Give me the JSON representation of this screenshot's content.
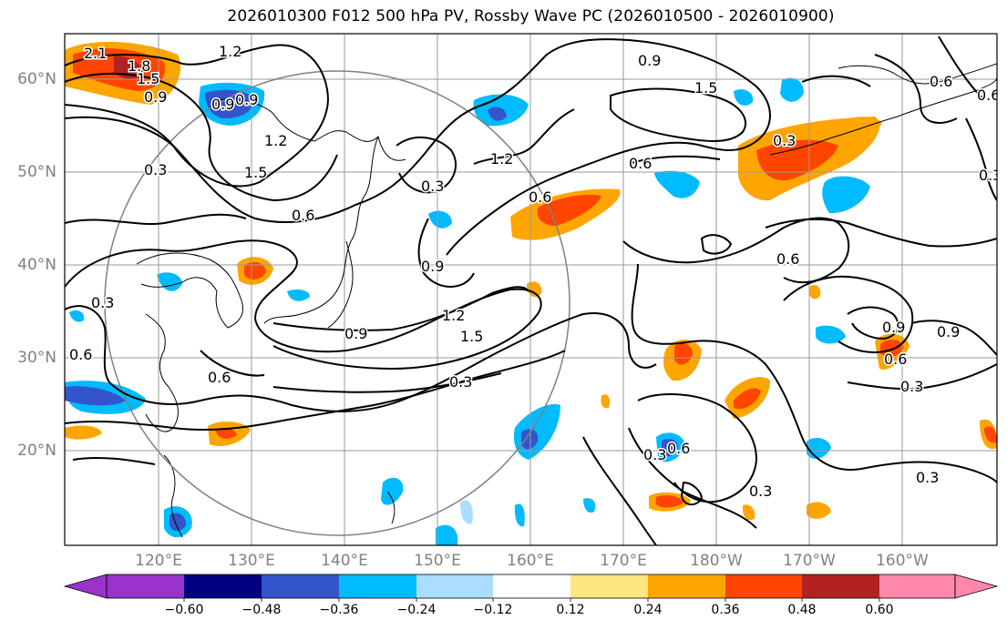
{
  "title": "2026010300 F012 500 hPa PV, Rossby Wave PC (2026010500 - 2026010900)",
  "lat_labels": [
    "60°N",
    "50°N",
    "40°N",
    "30°N",
    "20°N"
  ],
  "lon_labels": [
    "120°E",
    "130°E",
    "140°E",
    "150°E",
    "160°E",
    "170°E",
    "180°W",
    "170°W",
    "160°W"
  ],
  "colorbar": {
    "ticks": [
      "−0.60",
      "−0.48",
      "−0.36",
      "−0.24",
      "−0.12",
      "0.12",
      "0.24",
      "0.36",
      "0.48",
      "0.60"
    ],
    "colors": [
      "#9933cc",
      "#000080",
      "#3355cc",
      "#00bbff",
      "#aaddff",
      "#ffffff",
      "#ffe680",
      "#ffa500",
      "#ff4500",
      "#b22222",
      "#ff88aa"
    ]
  },
  "contour_labels": [
    "1.2",
    "1.8",
    "2.1",
    "1.5",
    "0.9",
    "0.9",
    "1.2",
    "1.5",
    "0.6",
    "0.3",
    "0.6",
    "0.9",
    "1.2",
    "1.5",
    "0.3",
    "0.3",
    "0.6",
    "0.9",
    "0.3",
    "1.2",
    "0.6",
    "0.9",
    "0.9",
    "0.6",
    "0.3",
    "0.6",
    "0.3",
    "0.3",
    "0.6",
    "0.9",
    "1.5",
    "0.6",
    "0.3",
    "0.6",
    "0.3",
    "0.9",
    "0.6",
    "0.3"
  ]
}
